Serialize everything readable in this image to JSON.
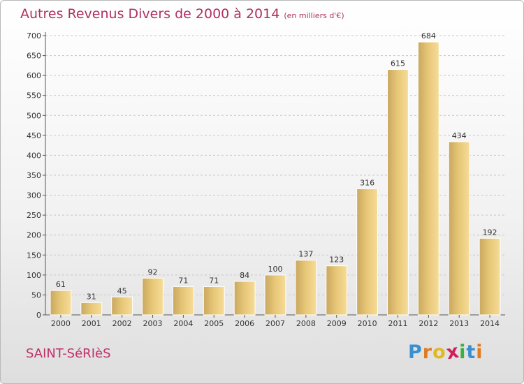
{
  "chart_data": {
    "type": "bar",
    "title": "Autres Revenus Divers de 2000 à 2014",
    "subtitle": "(en milliers d'€)",
    "categories": [
      "2000",
      "2001",
      "2002",
      "2003",
      "2004",
      "2005",
      "2006",
      "2007",
      "2008",
      "2009",
      "2010",
      "2011",
      "2012",
      "2013",
      "2014"
    ],
    "values": [
      61,
      31,
      45,
      92,
      71,
      71,
      84,
      100,
      137,
      123,
      316,
      615,
      684,
      434,
      192
    ],
    "ylim": [
      0,
      700
    ],
    "yticks": [
      0,
      50,
      100,
      150,
      200,
      250,
      300,
      350,
      400,
      450,
      500,
      550,
      600,
      650,
      700
    ],
    "grid": true,
    "bar_color": "#e8c878"
  },
  "footer": {
    "place": "SAINT-SéRIèS",
    "logo_letters": [
      "P",
      "r",
      "o",
      "x",
      "i",
      "t",
      "i"
    ],
    "logo_colors": [
      "#3a8fd0",
      "#e07b20",
      "#e0b820",
      "#d0205a",
      "#3ab040",
      "#3a8fd0",
      "#e07b20"
    ]
  }
}
